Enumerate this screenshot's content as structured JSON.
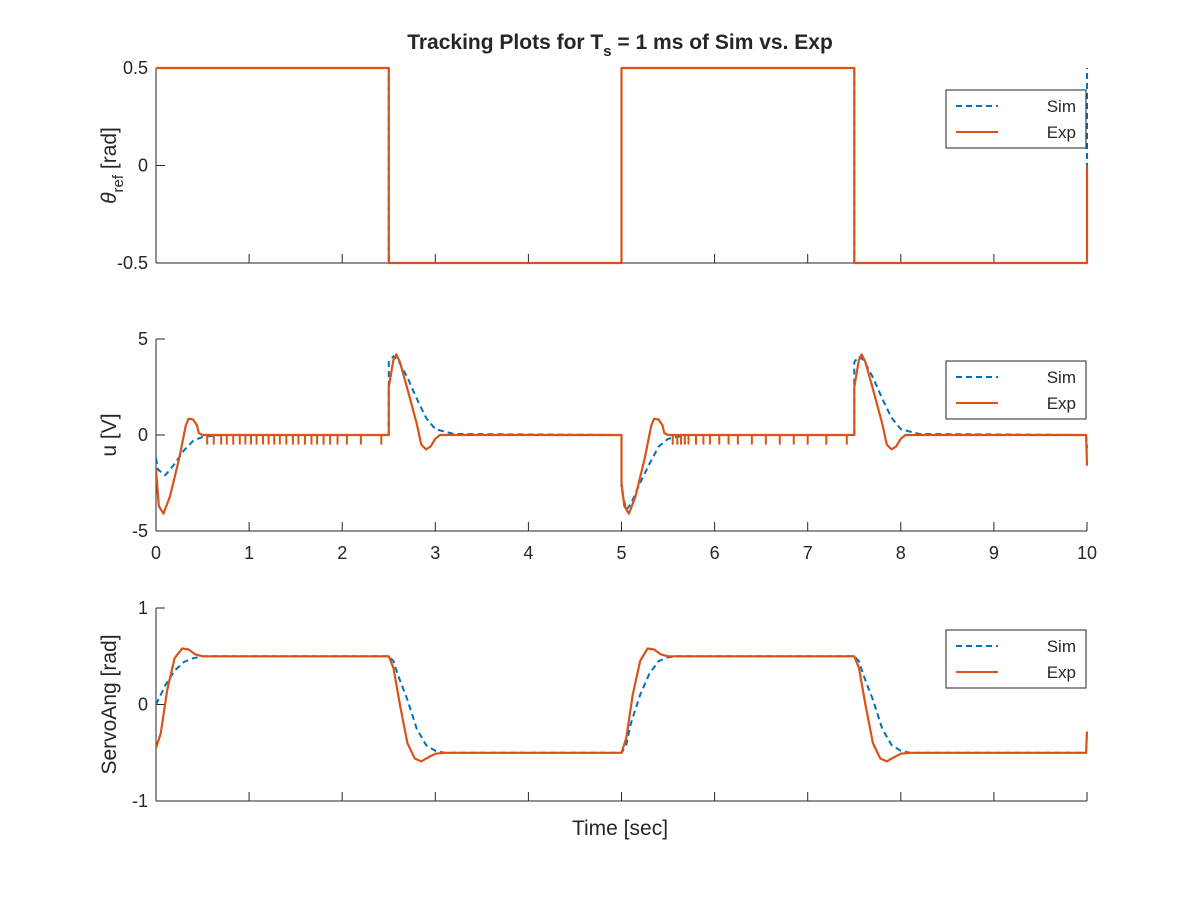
{
  "figure": {
    "title_main": "Tracking Plots for T",
    "title_sub": "s",
    "title_rest": " = 1 ms of Sim vs. Exp",
    "xlabel": "Time [sec]"
  },
  "colors": {
    "sim": "#0072BD",
    "exp": "#D95319",
    "axis": "#262626",
    "background": "#ffffff"
  },
  "legend": {
    "sim": "Sim",
    "exp": "Exp",
    "placement": "top-right"
  },
  "chart_data": [
    {
      "type": "line",
      "ylabel_main": "θ",
      "ylabel_sub": "ref",
      "ylabel_rest": " [rad]",
      "xlim": [
        0,
        10
      ],
      "ylim": [
        -0.5,
        0.5
      ],
      "xticks": [
        0,
        1,
        2,
        3,
        4,
        5,
        6,
        7,
        8,
        9,
        10
      ],
      "yticks": [
        -0.5,
        0,
        0.5
      ],
      "ytick_labels": [
        "-0.5",
        "0",
        "0.5"
      ],
      "show_xtick_labels": false,
      "grid": false,
      "series": [
        {
          "name": "Sim",
          "style": "dashed",
          "x": [
            0,
            2.5,
            2.5,
            5,
            5,
            7.5,
            7.5,
            10,
            10
          ],
          "y": [
            0.5,
            0.5,
            -0.5,
            -0.5,
            0.5,
            0.5,
            -0.5,
            -0.5,
            0.5
          ]
        },
        {
          "name": "Exp",
          "style": "solid",
          "x": [
            0,
            2.5,
            2.5,
            5,
            5,
            7.5,
            7.5,
            10,
            10
          ],
          "y": [
            0.5,
            0.5,
            -0.5,
            -0.5,
            0.5,
            0.5,
            -0.5,
            -0.5,
            0
          ]
        }
      ]
    },
    {
      "type": "line",
      "ylabel_main": "u [V]",
      "ylabel_sub": "",
      "ylabel_rest": "",
      "xlim": [
        0,
        10
      ],
      "ylim": [
        -5,
        5
      ],
      "xticks": [
        0,
        1,
        2,
        3,
        4,
        5,
        6,
        7,
        8,
        9,
        10
      ],
      "xtick_labels": [
        "0",
        "1",
        "2",
        "3",
        "4",
        "5",
        "6",
        "7",
        "8",
        "9",
        "10"
      ],
      "yticks": [
        -5,
        0,
        5
      ],
      "ytick_labels": [
        "-5",
        "0",
        "5"
      ],
      "show_xtick_labels": true,
      "grid": false,
      "series": [
        {
          "name": "Sim",
          "style": "dashed",
          "x": [
            0,
            0.02,
            0.1,
            0.2,
            0.3,
            0.4,
            0.5,
            0.7,
            2.5,
            2.5,
            2.55,
            2.6,
            2.7,
            2.8,
            2.9,
            3.0,
            3.2,
            5.0,
            5.0,
            5.05,
            5.1,
            5.2,
            5.3,
            5.4,
            5.5,
            5.7,
            7.5,
            7.5,
            7.55,
            7.6,
            7.7,
            7.8,
            7.9,
            8.0,
            8.2,
            9.99,
            10.0
          ],
          "y": [
            -1.2,
            -1.8,
            -2.1,
            -1.5,
            -0.8,
            -0.3,
            -0.1,
            0,
            0,
            3.8,
            4.1,
            3.9,
            3.0,
            1.9,
            0.9,
            0.3,
            0.05,
            0,
            -2.8,
            -3.9,
            -3.6,
            -2.5,
            -1.5,
            -0.6,
            -0.2,
            0,
            0,
            3.8,
            4.1,
            3.9,
            3.0,
            1.9,
            0.9,
            0.3,
            0.05,
            0,
            -0.7
          ]
        },
        {
          "name": "Exp",
          "style": "solid",
          "x": [
            0,
            0.03,
            0.08,
            0.15,
            0.25,
            0.32,
            0.35,
            0.4,
            0.44,
            0.46,
            0.5,
            2.5,
            2.5,
            2.55,
            2.58,
            2.62,
            2.7,
            2.8,
            2.85,
            2.9,
            2.95,
            3.0,
            3.05,
            5.0,
            5.0,
            5.03,
            5.08,
            5.15,
            5.25,
            5.32,
            5.35,
            5.4,
            5.44,
            5.46,
            5.5,
            7.5,
            7.5,
            7.55,
            7.58,
            7.62,
            7.7,
            7.8,
            7.85,
            7.9,
            7.95,
            8.0,
            8.05,
            9.99,
            10.0
          ],
          "y": [
            -1.8,
            -3.7,
            -4.1,
            -3.2,
            -1.2,
            0.5,
            0.85,
            0.8,
            0.5,
            0.1,
            0,
            0,
            2.5,
            3.9,
            4.2,
            3.8,
            2.4,
            0.6,
            -0.5,
            -0.75,
            -0.6,
            -0.2,
            0,
            0,
            -2.5,
            -3.7,
            -4.1,
            -3.2,
            -1.2,
            0.5,
            0.85,
            0.8,
            0.5,
            0.1,
            0,
            0,
            2.5,
            3.9,
            4.2,
            3.8,
            2.4,
            0.6,
            -0.5,
            -0.75,
            -0.6,
            -0.2,
            0,
            0,
            -1.6
          ]
        }
      ],
      "exp_spikes": {
        "depth": -0.5,
        "x": [
          0.55,
          0.62,
          0.7,
          0.76,
          0.83,
          0.9,
          0.96,
          1.02,
          1.08,
          1.15,
          1.21,
          1.27,
          1.33,
          1.4,
          1.47,
          1.53,
          1.6,
          1.67,
          1.73,
          1.8,
          1.87,
          1.95,
          2.05,
          2.2,
          2.42,
          5.55,
          5.6,
          5.64,
          5.68,
          5.72,
          5.8,
          5.88,
          5.95,
          6.05,
          6.15,
          6.25,
          6.4,
          6.55,
          6.7,
          6.85,
          7.0,
          7.2,
          7.42
        ]
      }
    },
    {
      "type": "line",
      "ylabel_main": "ServoAng [rad]",
      "ylabel_sub": "",
      "ylabel_rest": "",
      "xlim": [
        0,
        10
      ],
      "ylim": [
        -1,
        1
      ],
      "xticks": [
        0,
        1,
        2,
        3,
        4,
        5,
        6,
        7,
        8,
        9,
        10
      ],
      "yticks": [
        -1,
        0,
        1
      ],
      "ytick_labels": [
        "-1",
        "0",
        "1"
      ],
      "show_xtick_labels": false,
      "grid": false,
      "series": [
        {
          "name": "Sim",
          "style": "dashed",
          "x": [
            0,
            0.05,
            0.1,
            0.2,
            0.3,
            0.4,
            0.5,
            0.6,
            2.5,
            2.55,
            2.6,
            2.7,
            2.8,
            2.9,
            3.0,
            3.1,
            5.0,
            5.05,
            5.1,
            5.2,
            5.3,
            5.4,
            5.5,
            5.6,
            7.5,
            7.55,
            7.6,
            7.7,
            7.8,
            7.9,
            8.0,
            8.1,
            9.99,
            10.0
          ],
          "y": [
            0,
            0.1,
            0.2,
            0.35,
            0.44,
            0.48,
            0.5,
            0.5,
            0.5,
            0.45,
            0.3,
            0.05,
            -0.25,
            -0.42,
            -0.48,
            -0.5,
            -0.5,
            -0.42,
            -0.2,
            0.1,
            0.32,
            0.45,
            0.49,
            0.5,
            0.5,
            0.45,
            0.3,
            0.05,
            -0.25,
            -0.42,
            -0.48,
            -0.5,
            -0.5,
            -0.5
          ]
        },
        {
          "name": "Exp",
          "style": "solid",
          "x": [
            0,
            0.05,
            0.12,
            0.2,
            0.28,
            0.35,
            0.42,
            0.5,
            0.6,
            2.5,
            2.55,
            2.62,
            2.7,
            2.78,
            2.85,
            2.92,
            3.0,
            3.1,
            5.0,
            5.05,
            5.12,
            5.2,
            5.28,
            5.35,
            5.42,
            5.5,
            5.6,
            7.5,
            7.55,
            7.62,
            7.7,
            7.78,
            7.85,
            7.92,
            8.0,
            8.1,
            9.99,
            10.0
          ],
          "y": [
            -0.45,
            -0.3,
            0.15,
            0.48,
            0.58,
            0.57,
            0.52,
            0.5,
            0.5,
            0.5,
            0.38,
            0.0,
            -0.4,
            -0.56,
            -0.59,
            -0.55,
            -0.51,
            -0.5,
            -0.5,
            -0.35,
            0.1,
            0.45,
            0.58,
            0.57,
            0.52,
            0.5,
            0.5,
            0.5,
            0.38,
            0.0,
            -0.4,
            -0.56,
            -0.59,
            -0.55,
            -0.51,
            -0.5,
            -0.5,
            -0.28
          ]
        }
      ]
    }
  ]
}
